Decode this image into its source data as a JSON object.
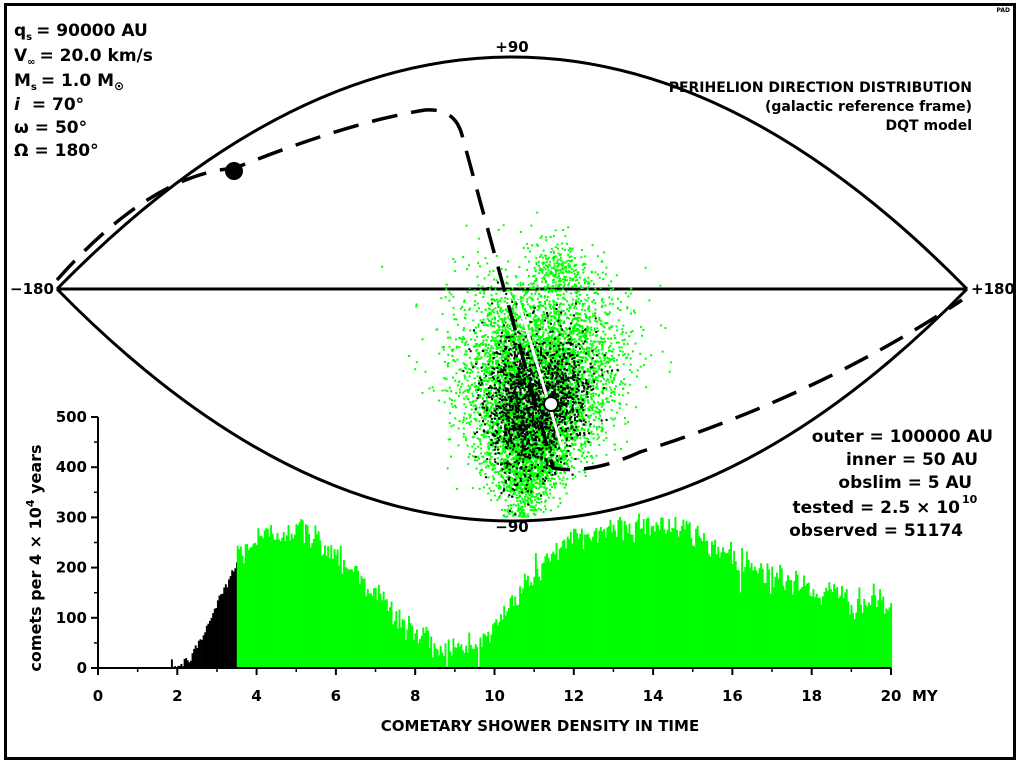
{
  "params": {
    "q_label": "q",
    "q_sub": "s",
    "q_value": "= 90000 AU",
    "v_label": "V",
    "v_sub": "∞",
    "v_value": "= 20.0 km/s",
    "m_label": "M",
    "m_sub": "s",
    "m_value": "= 1.0 M",
    "m_value_sub": "⊙",
    "i_label": "i",
    "i_value": "=  70°",
    "w_label": "ω",
    "w_value": "=  50°",
    "big_omega_label": "Ω",
    "big_omega_value": "= 180°"
  },
  "corner_tag": "PAD",
  "map_title": {
    "line1": "PERIHELION DIRECTION DISTRIBUTION",
    "line2": "(galactic reference frame)",
    "line3": "DQT model"
  },
  "map_ticks": {
    "top": "+90",
    "bottom": "−90",
    "left": "−180",
    "right": "+180"
  },
  "stats": {
    "outer": "outer = 100000 AU",
    "inner": "inner = 50 AU",
    "obslim": "obslim = 5 AU",
    "tested_prefix": "tested = 2.5 × 10",
    "tested_exp": "10",
    "observed": "observed = 51174"
  },
  "colors": {
    "green": "#00ff00",
    "black": "#000000",
    "white": "#ffffff"
  },
  "chart_data": {
    "type": "bar",
    "title": "COMETARY SHOWER DENSITY IN TIME",
    "xlabel": "",
    "x_unit": "MY",
    "ylabel_prefix": "comets per 4 × 10",
    "ylabel_exp": "4",
    "ylabel_suffix": " years",
    "xlim": [
      0,
      20
    ],
    "ylim": [
      0,
      500
    ],
    "x_ticks": [
      0,
      2,
      4,
      6,
      8,
      10,
      12,
      14,
      16,
      18,
      20
    ],
    "y_ticks": [
      0,
      100,
      200,
      300,
      400,
      500
    ],
    "bin_width": 0.04,
    "series": [
      {
        "color": "#000000",
        "x": [
          1.8,
          2.0,
          2.2,
          2.4,
          2.6,
          2.8,
          3.0,
          3.2,
          3.4,
          3.48
        ],
        "values": [
          0,
          3,
          12,
          30,
          60,
          95,
          130,
          165,
          195,
          205
        ]
      },
      {
        "color": "#00ff00",
        "x": [
          3.5,
          3.8,
          4.0,
          4.4,
          4.8,
          5.2,
          5.6,
          6.0,
          6.5,
          7.0,
          7.5,
          8.0,
          8.5,
          9.0,
          9.5,
          10.0,
          10.5,
          11.0,
          11.5,
          12.0,
          12.5,
          13.0,
          13.5,
          14.0,
          14.5,
          15.0,
          15.5,
          16.0,
          16.5,
          17.0,
          17.5,
          18.0,
          18.5,
          19.0,
          19.5,
          20.0
        ],
        "values": [
          230,
          245,
          255,
          265,
          280,
          270,
          250,
          230,
          190,
          150,
          100,
          70,
          45,
          35,
          45,
          80,
          140,
          190,
          235,
          255,
          270,
          280,
          285,
          290,
          280,
          265,
          245,
          225,
          205,
          185,
          170,
          155,
          145,
          135,
          130,
          125
        ]
      }
    ],
    "scatter": {
      "green_clusters": [
        {
          "cx": 2,
          "cy": -35,
          "sx": 14,
          "sy": 20,
          "n": 2600
        },
        {
          "cx": 20,
          "cy": -35,
          "sx": 14,
          "sy": 20,
          "n": 2600
        },
        {
          "cx": 11,
          "cy": -62,
          "sx": 12,
          "sy": 10,
          "n": 1200
        },
        {
          "cx": 18,
          "cy": 8,
          "sx": 5,
          "sy": 4,
          "n": 160
        }
      ],
      "black_clusters": [
        {
          "cx": 5,
          "cy": -45,
          "sx": 9,
          "sy": 14,
          "n": 1100
        },
        {
          "cx": 20,
          "cy": -42,
          "sx": 8,
          "sy": 13,
          "n": 650
        }
      ]
    }
  }
}
